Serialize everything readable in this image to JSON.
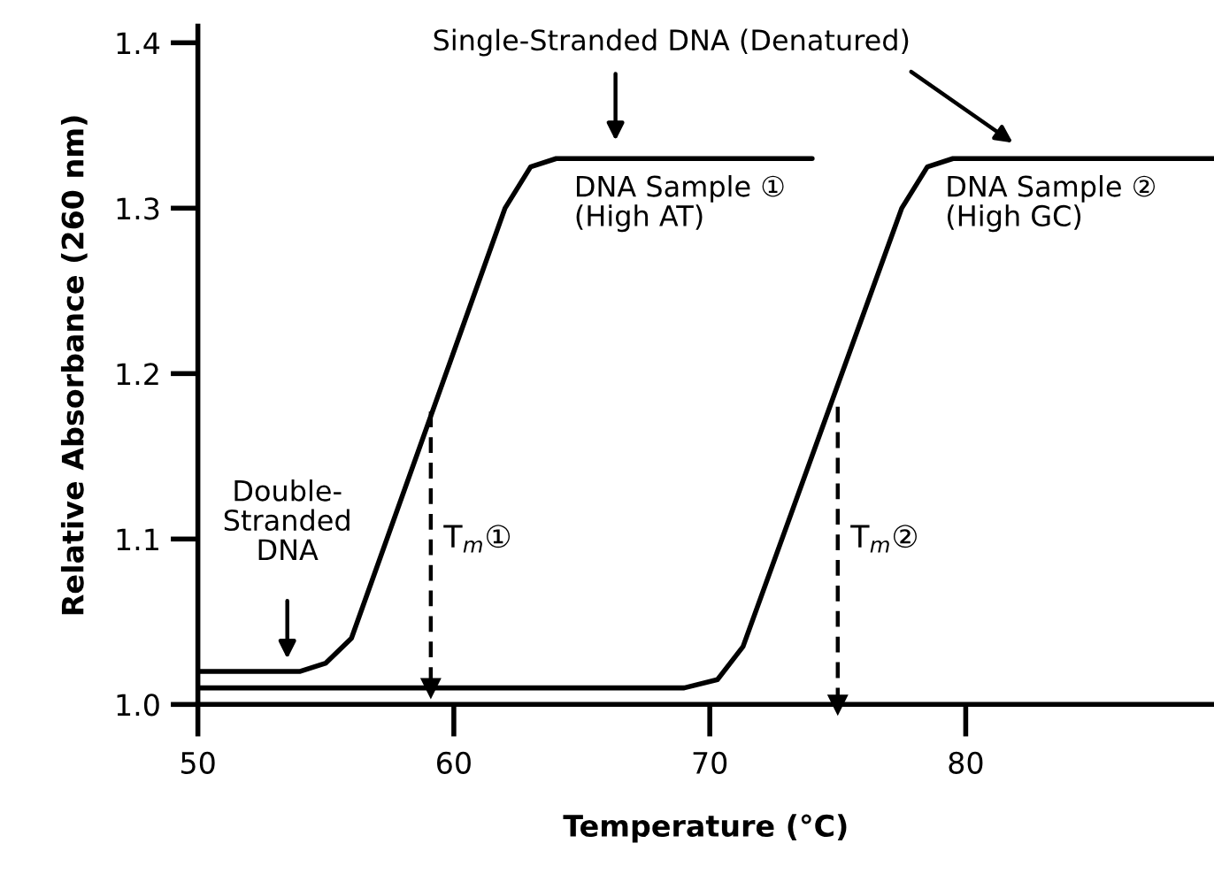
{
  "chart_data": {
    "type": "line",
    "xlabel": "Temperature (°C)",
    "ylabel": "Relative Absorbance (260 nm)",
    "xlim": [
      50,
      89.7
    ],
    "ylim": [
      1.0,
      1.41
    ],
    "xticks": [
      50,
      60,
      70,
      80
    ],
    "yticks": [
      {
        "value": 1.0,
        "label": "1.0"
      },
      {
        "value": 1.1,
        "label": "1.1"
      },
      {
        "value": 1.2,
        "label": "1.2"
      },
      {
        "value": 1.3,
        "label": "1.3"
      },
      {
        "value": 1.4,
        "label": "1.4"
      }
    ],
    "grid": false,
    "marker": "none",
    "line_style": "solid",
    "series": [
      {
        "name": "DNA Sample ①\n(High AT)",
        "color": "#000000",
        "x": [
          50,
          54,
          55,
          56,
          62,
          63,
          64,
          74
        ],
        "values": [
          1.02,
          1.02,
          1.025,
          1.04,
          1.3,
          1.325,
          1.33,
          1.33
        ]
      },
      {
        "name": "DNA Sample ②\n(High GC)",
        "color": "#000000",
        "x": [
          50,
          69,
          70.3,
          71.3,
          77.5,
          78.5,
          79.5,
          89.7
        ],
        "values": [
          1.01,
          1.01,
          1.015,
          1.035,
          1.3,
          1.325,
          1.33,
          1.33
        ]
      },
      {
        "type": "line",
        "line_style": "dashed",
        "marker": "triangle",
        "color": "#000000",
        "x": [
          59.1,
          59.1
        ],
        "values": [
          1.177,
          1.01
        ]
      },
      {
        "type": "line",
        "line_style": "dashed",
        "marker": "triangle",
        "color": "#000000",
        "x": [
          75.0,
          75.0
        ],
        "values": [
          1.18,
          1.0
        ]
      }
    ],
    "annotations": [
      "Double-\nStranded\nDNA",
      "Single-Stranded DNA (Denatured)",
      {
        "text": "T$_{m}$①",
        "x": 59.1,
        "y": 1.1
      },
      {
        "text": "T$_{m}$②",
        "x": 75.0,
        "y": 1.1
      }
    ]
  }
}
